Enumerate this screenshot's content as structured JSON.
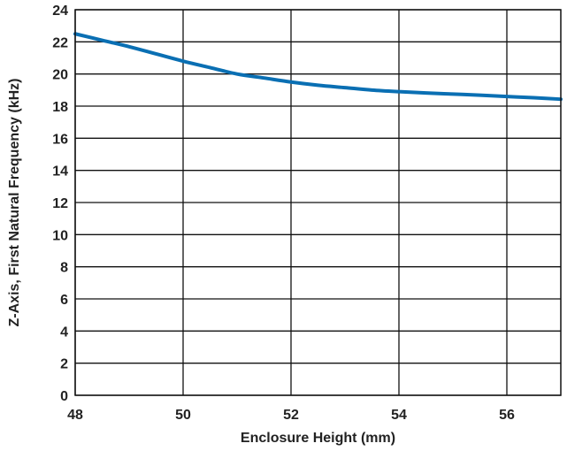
{
  "chart_data": {
    "type": "line",
    "title": "",
    "xlabel": "Enclosure Height (mm)",
    "ylabel": "Z-Axis, First Natural Frequency (kHz)",
    "xlim": [
      48,
      57
    ],
    "ylim": [
      0,
      24
    ],
    "xticks": [
      48,
      50,
      52,
      54,
      56
    ],
    "yticks": [
      0,
      2,
      4,
      6,
      8,
      10,
      12,
      14,
      16,
      18,
      20,
      22,
      24
    ],
    "grid": true,
    "legend": "none",
    "series": [
      {
        "color": "#0a6fb3",
        "x": [
          48,
          48.5,
          49,
          49.5,
          50,
          50.5,
          51,
          51.5,
          52,
          52.5,
          53,
          53.5,
          54,
          54.5,
          55,
          55.5,
          56,
          56.5,
          57
        ],
        "y": [
          22.5,
          22.1,
          21.7,
          21.25,
          20.8,
          20.4,
          20.0,
          19.75,
          19.5,
          19.3,
          19.15,
          19.0,
          18.9,
          18.82,
          18.75,
          18.68,
          18.6,
          18.52,
          18.43
        ]
      }
    ]
  }
}
